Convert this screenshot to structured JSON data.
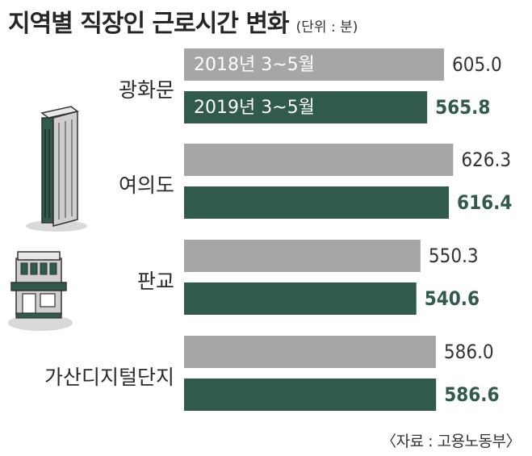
{
  "title": "지역별 직장인 근로시간 변화",
  "unit": "(단위 : 분)",
  "source": "〈자료 : 고용노동부〉",
  "colors": {
    "series_2018": "#a6a6a6",
    "series_2019": "#2f5a4c",
    "label_2018": "#333333",
    "label_2019": "#2f5a4c",
    "icon_fill": "#cfcfcf",
    "icon_accent": "#2f5a4c",
    "icon_stroke": "#333333"
  },
  "icons": [
    "office-tower-icon",
    "storefront-building-icon"
  ],
  "chart_data": {
    "type": "bar",
    "orientation": "horizontal",
    "title": "지역별 직장인 근로시간 변화",
    "unit": "(단위 : 분)",
    "categories": [
      "광화문",
      "여의도",
      "판교",
      "가산디지털단지"
    ],
    "series": [
      {
        "name": "2018년 3~5월",
        "values": [
          605.0,
          626.3,
          550.3,
          586.0
        ],
        "labels": [
          "605.0",
          "626.3",
          "550.3",
          "586.0"
        ]
      },
      {
        "name": "2019년 3~5월",
        "values": [
          565.8,
          616.4,
          540.6,
          586.6
        ],
        "labels": [
          "565.8",
          "616.4",
          "540.6",
          "586.6"
        ]
      }
    ],
    "legend": "inline-on-first-bars",
    "grid": false
  }
}
